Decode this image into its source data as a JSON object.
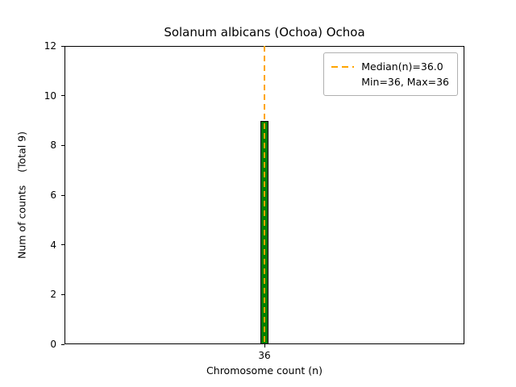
{
  "chart_data": {
    "type": "bar",
    "title": "Solanum albicans (Ochoa) Ochoa",
    "xlabel": "Chromosome count (n)",
    "ylabel": "Num of counts    (Total 9)",
    "categories": [
      "36"
    ],
    "values": [
      9
    ],
    "total_counts": 9,
    "ylim": [
      0,
      12
    ],
    "yticks": [
      0,
      2,
      4,
      6,
      8,
      10,
      12
    ],
    "grid": false,
    "bar_color": "#008000",
    "bar_edge_color": "#000000",
    "median_line": {
      "value": 36.0,
      "color": "#FFA500",
      "style": "dashed"
    },
    "legend": {
      "position": "top-right",
      "entries": [
        {
          "swatch": "dashed-line",
          "color": "#FFA500",
          "label": "Median(n)=36.0"
        },
        {
          "swatch": "none",
          "label": "Min=36, Max=36"
        }
      ]
    }
  }
}
